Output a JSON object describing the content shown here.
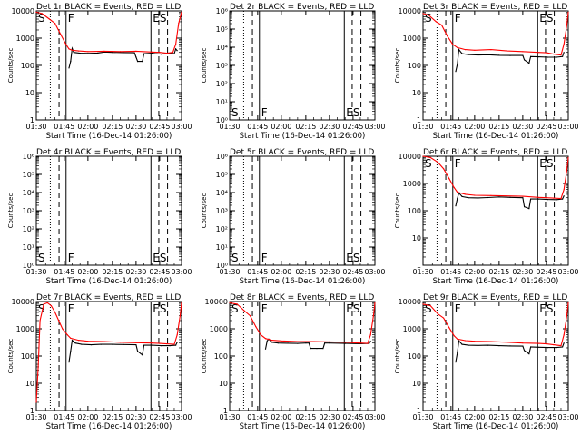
{
  "figure": {
    "xlabel": "Start Time (16-Dec-14 01:26:00)",
    "ylabel": "Counts/sec",
    "x_ticks": [
      "01:30",
      "01:45",
      "02:00",
      "02:15",
      "02:30",
      "02:45",
      "03:00"
    ],
    "colors": {
      "events": "#000000",
      "lld": "#ff0000"
    }
  },
  "chart_data": [
    {
      "type": "line",
      "title": "Det 1r BLACK = Events, RED = LLD",
      "xlabel": "Start Time (16-Dec-14 01:26:00)",
      "ylabel": "Counts/sec",
      "scale": "log",
      "ylim": [
        1,
        10000
      ],
      "y_ticks": [
        "10000",
        "1000",
        "100",
        "10",
        "1"
      ],
      "x_ticks": [
        "01:30",
        "01:45",
        "02:00",
        "02:15",
        "02:30",
        "02:45",
        "03:00"
      ],
      "xlim": [
        0,
        95
      ],
      "marker_labels": [
        "S",
        "F",
        "ES"
      ],
      "series": [
        {
          "name": "Events",
          "color": "#000000",
          "x": [
            18,
            19,
            20,
            21,
            25,
            30,
            36,
            40,
            45,
            52,
            59,
            60,
            61,
            64,
            65,
            70,
            72,
            76,
            80,
            85,
            86,
            87
          ],
          "y": [
            80,
            140,
            420,
            300,
            280,
            275,
            285,
            310,
            300,
            295,
            290,
            200,
            140,
            140,
            270,
            280,
            270,
            260,
            270,
            270,
            400,
            350
          ]
        },
        {
          "name": "LLD",
          "color": "#ff0000",
          "x": [
            0,
            3,
            7,
            10,
            13,
            16,
            18,
            20,
            24,
            30,
            40,
            50,
            60,
            70,
            75,
            80,
            84,
            86,
            88,
            90
          ],
          "y": [
            9000,
            8000,
            5000,
            3500,
            1400,
            600,
            400,
            360,
            340,
            320,
            330,
            320,
            330,
            310,
            300,
            280,
            300,
            600,
            3500,
            9000
          ]
        }
      ]
    },
    {
      "type": "line",
      "title": "Det 2r BLACK = Events, RED = LLD",
      "xlabel": "Start Time (16-Dec-14 01:26:00)",
      "ylabel": "Counts/sec",
      "scale": "log",
      "ylim": [
        1,
        1000000
      ],
      "y_ticks": [
        "10⁶",
        "10⁵",
        "10⁴",
        "10³",
        "10²",
        "10¹",
        "10⁰"
      ],
      "x_ticks": [
        "01:30",
        "01:45",
        "02:00",
        "02:15",
        "02:30",
        "02:45",
        "03:00"
      ],
      "xlim": [
        0,
        95
      ],
      "marker_labels": [
        "S",
        "F",
        "ES"
      ],
      "series": []
    },
    {
      "type": "line",
      "title": "Det 3r BLACK = Events, RED = LLD",
      "xlabel": "Start Time (16-Dec-14 01:26:00)",
      "ylabel": "Counts/sec",
      "scale": "log",
      "ylim": [
        1,
        10000
      ],
      "y_ticks": [
        "10000",
        "1000",
        "100",
        "10",
        "1"
      ],
      "x_ticks": [
        "01:30",
        "01:45",
        "02:00",
        "02:15",
        "02:30",
        "02:45",
        "03:00"
      ],
      "xlim": [
        0,
        95
      ],
      "marker_labels": [
        "S",
        "F",
        "ES"
      ],
      "series": [
        {
          "name": "Events",
          "color": "#000000",
          "x": [
            18,
            19,
            20,
            22,
            26,
            32,
            38,
            45,
            52,
            60,
            61,
            64,
            65,
            70,
            76,
            82,
            86,
            87
          ],
          "y": [
            60,
            110,
            380,
            270,
            250,
            240,
            245,
            235,
            230,
            230,
            160,
            120,
            210,
            205,
            200,
            200,
            210,
            300
          ]
        },
        {
          "name": "LLD",
          "color": "#ff0000",
          "x": [
            0,
            3,
            7,
            10,
            13,
            16,
            19,
            24,
            30,
            40,
            50,
            60,
            70,
            75,
            80,
            85,
            87,
            89,
            91
          ],
          "y": [
            8000,
            7000,
            4000,
            3000,
            1200,
            600,
            450,
            380,
            360,
            380,
            340,
            320,
            300,
            290,
            260,
            240,
            600,
            3000,
            9000
          ]
        }
      ]
    },
    {
      "type": "line",
      "title": "Det 4r BLACK = Events, RED = LLD",
      "xlabel": "Start Time (16-Dec-14 01:26:00)",
      "ylabel": "Counts/sec",
      "scale": "log",
      "ylim": [
        1,
        1000000
      ],
      "y_ticks": [
        "10⁶",
        "10⁵",
        "10⁴",
        "10³",
        "10²",
        "10¹",
        "10⁰"
      ],
      "x_ticks": [
        "01:30",
        "01:45",
        "02:00",
        "02:15",
        "02:30",
        "02:45",
        "03:00"
      ],
      "xlim": [
        0,
        95
      ],
      "marker_labels": [
        "S",
        "F",
        "ES"
      ],
      "series": []
    },
    {
      "type": "line",
      "title": "Det 5r BLACK = Events, RED = LLD",
      "xlabel": "Start Time (16-Dec-14 01:26:00)",
      "ylabel": "Counts/sec",
      "scale": "log",
      "ylim": [
        1,
        1000000
      ],
      "y_ticks": [
        "10⁶",
        "10⁵",
        "10⁴",
        "10³",
        "10²",
        "10¹",
        "10⁰"
      ],
      "x_ticks": [
        "01:30",
        "01:45",
        "02:00",
        "02:15",
        "02:30",
        "02:45",
        "03:00"
      ],
      "xlim": [
        0,
        95
      ],
      "marker_labels": [
        "S",
        "F",
        "ES"
      ],
      "series": []
    },
    {
      "type": "line",
      "title": "Det 6r BLACK = Events, RED = LLD",
      "xlabel": "Start Time (16-Dec-14 01:26:00)",
      "ylabel": "Counts/sec",
      "scale": "log",
      "ylim": [
        1,
        10000
      ],
      "y_ticks": [
        "10000",
        "1000",
        "100",
        "10",
        "1"
      ],
      "x_ticks": [
        "01:30",
        "01:45",
        "02:00",
        "02:15",
        "02:30",
        "02:45",
        "03:00"
      ],
      "xlim": [
        0,
        95
      ],
      "marker_labels": [
        "S",
        "F",
        "ES"
      ],
      "series": [
        {
          "name": "Events",
          "color": "#000000",
          "x": [
            18,
            19,
            20,
            22,
            26,
            32,
            38,
            45,
            52,
            60,
            61,
            64,
            65,
            70,
            76,
            82,
            86,
            87
          ],
          "y": [
            150,
            280,
            450,
            330,
            300,
            295,
            305,
            320,
            310,
            300,
            140,
            120,
            270,
            270,
            260,
            255,
            270,
            350
          ]
        },
        {
          "name": "LLD",
          "color": "#ff0000",
          "x": [
            0,
            4,
            8,
            11,
            14,
            17,
            19,
            24,
            30,
            40,
            50,
            60,
            70,
            75,
            80,
            85,
            87,
            89,
            91
          ],
          "y": [
            10000,
            9000,
            6000,
            3500,
            1500,
            700,
            480,
            400,
            370,
            360,
            350,
            340,
            310,
            300,
            290,
            280,
            600,
            3000,
            9000
          ]
        }
      ]
    },
    {
      "type": "line",
      "title": "Det 7r BLACK = Events, RED = LLD",
      "xlabel": "Start Time (16-Dec-14 01:26:00)",
      "ylabel": "Counts/sec",
      "scale": "log",
      "ylim": [
        1,
        10000
      ],
      "y_ticks": [
        "10000",
        "1000",
        "100",
        "10",
        "1"
      ],
      "x_ticks": [
        "01:30",
        "01:45",
        "02:00",
        "02:15",
        "02:30",
        "02:45",
        "03:00"
      ],
      "xlim": [
        0,
        95
      ],
      "marker_labels": [
        "S",
        "F",
        "ES"
      ],
      "series": [
        {
          "name": "Events",
          "color": "#000000",
          "x": [
            18,
            19,
            20,
            22,
            26,
            32,
            38,
            45,
            52,
            60,
            61,
            64,
            65,
            70,
            76,
            82,
            86,
            87
          ],
          "y": [
            60,
            150,
            380,
            300,
            270,
            260,
            270,
            270,
            265,
            260,
            150,
            110,
            250,
            250,
            240,
            240,
            250,
            320
          ]
        },
        {
          "name": "LLD",
          "color": "#ff0000",
          "x": [
            0,
            1,
            2,
            4,
            6,
            8,
            10,
            12,
            14,
            17,
            19,
            24,
            30,
            40,
            50,
            60,
            70,
            75,
            80,
            85,
            87,
            89,
            91
          ],
          "y": [
            2,
            40,
            2000,
            8000,
            9000,
            7000,
            4000,
            2000,
            1000,
            600,
            450,
            380,
            350,
            340,
            320,
            310,
            300,
            290,
            280,
            270,
            600,
            3000,
            9000
          ]
        }
      ]
    },
    {
      "type": "line",
      "title": "Det 8r BLACK = Events, RED = LLD",
      "xlabel": "Start Time (16-Dec-14 01:26:00)",
      "ylabel": "Counts/sec",
      "scale": "log",
      "ylim": [
        1,
        10000
      ],
      "y_ticks": [
        "10000",
        "1000",
        "100",
        "10",
        "1"
      ],
      "x_ticks": [
        "01:30",
        "01:45",
        "02:00",
        "02:15",
        "02:30",
        "02:45",
        "03:00"
      ],
      "xlim": [
        0,
        95
      ],
      "marker_labels": [
        "S",
        "F",
        "ES"
      ],
      "series": [
        {
          "name": "Events",
          "color": "#000000",
          "x": [
            20,
            21,
            22,
            24,
            28,
            34,
            40,
            45,
            47,
            48,
            52,
            56,
            57,
            60,
            70,
            80,
            86,
            87
          ],
          "y": [
            180,
            360,
            420,
            320,
            300,
            295,
            290,
            300,
            300,
            190,
            190,
            190,
            300,
            300,
            290,
            285,
            290,
            350
          ]
        },
        {
          "name": "LLD",
          "color": "#ff0000",
          "x": [
            0,
            4,
            8,
            11,
            14,
            17,
            20,
            24,
            30,
            40,
            50,
            60,
            70,
            75,
            80,
            85,
            87,
            89,
            91
          ],
          "y": [
            9000,
            8000,
            4500,
            3000,
            1200,
            600,
            440,
            380,
            360,
            340,
            340,
            330,
            320,
            310,
            300,
            290,
            600,
            3000,
            9000
          ]
        }
      ]
    },
    {
      "type": "line",
      "title": "Det 9r BLACK = Events, RED = LLD",
      "xlabel": "Start Time (16-Dec-14 01:26:00)",
      "ylabel": "Counts/sec",
      "scale": "log",
      "ylim": [
        1,
        10000
      ],
      "y_ticks": [
        "10000",
        "1000",
        "100",
        "10",
        "1"
      ],
      "x_ticks": [
        "01:30",
        "01:45",
        "02:00",
        "02:15",
        "02:30",
        "02:45",
        "03:00"
      ],
      "xlim": [
        0,
        95
      ],
      "marker_labels": [
        "S",
        "F",
        "ES"
      ],
      "series": [
        {
          "name": "Events",
          "color": "#000000",
          "x": [
            18,
            19,
            20,
            22,
            26,
            32,
            38,
            45,
            52,
            60,
            61,
            64,
            65,
            70,
            76,
            82,
            86,
            87
          ],
          "y": [
            60,
            130,
            360,
            270,
            250,
            245,
            250,
            240,
            235,
            230,
            160,
            120,
            215,
            210,
            205,
            205,
            215,
            300
          ]
        },
        {
          "name": "LLD",
          "color": "#ff0000",
          "x": [
            0,
            4,
            8,
            11,
            14,
            17,
            19,
            24,
            30,
            40,
            50,
            60,
            70,
            75,
            80,
            85,
            87,
            89,
            91
          ],
          "y": [
            8000,
            7000,
            3500,
            2500,
            1100,
            550,
            420,
            370,
            350,
            340,
            320,
            300,
            290,
            280,
            260,
            240,
            600,
            3000,
            9000
          ]
        }
      ]
    }
  ]
}
